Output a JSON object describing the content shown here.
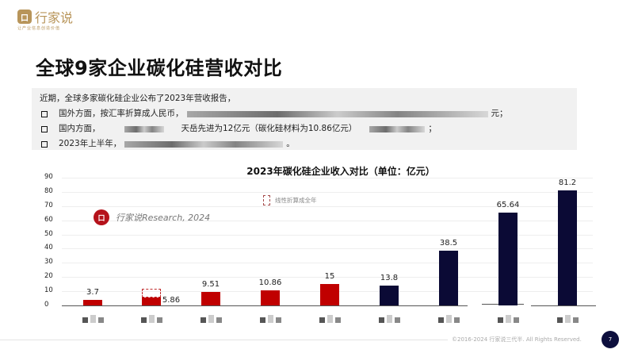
{
  "brand": {
    "logo_mark": "口",
    "name": "行家说",
    "tagline": "让产业信息创造价值",
    "color": "#b8955a"
  },
  "page": {
    "title": "全球9家企业碳化硅营收对比",
    "number": "7"
  },
  "summary": {
    "intro": "近期，全球多家碳化硅企业公布了2023年营收报告，",
    "bullets": [
      {
        "prefix": "国外方面，按汇率折算成人民币，",
        "suffix": "元；"
      },
      {
        "prefix": "国内方面，",
        "middle": "天岳先进为12亿元（碳化硅材料为10.86亿元）",
        "suffix": "；"
      },
      {
        "prefix": "2023年上半年，",
        "suffix": "。"
      }
    ]
  },
  "chart": {
    "legend_label": "线性折算成全年",
    "watermark_text": "行家说Research, 2024",
    "watermark_icon": "口"
  },
  "chart_data": {
    "type": "bar",
    "title": "2023年碳化硅企业收入对比（单位：亿元）",
    "categories": [
      "(redacted 1)",
      "(redacted 2)",
      "(redacted 3)",
      "(redacted 4)",
      "(redacted 5)",
      "(redacted 6)",
      "(redacted 7)",
      "(redacted 8)",
      "(redacted 9)"
    ],
    "values": [
      3.7,
      5.86,
      9.51,
      10.86,
      15,
      13.8,
      38.5,
      65.64,
      81.2
    ],
    "labels": [
      "3.7",
      "5.86",
      "9.51",
      "10.86",
      "15",
      "13.8",
      "38.5",
      "65.64",
      "81.2"
    ],
    "colors": [
      "#c00000",
      "#c00000",
      "#c00000",
      "#c00000",
      "#c00000",
      "#0b0a35",
      "#0b0a35",
      "#0b0a35",
      "#0b0a35"
    ],
    "annotations": [
      {
        "category_index": 1,
        "type": "dashed-box",
        "annualized_estimate": 11.72,
        "label": "线性折算成全年"
      }
    ],
    "ylim": [
      0,
      90
    ],
    "yticks": [
      0,
      10,
      20,
      30,
      40,
      50,
      60,
      70,
      80,
      90
    ],
    "xlabel": "",
    "ylabel": "",
    "grid": true
  },
  "footer": {
    "copyright": "©2016-2024 行家说三代半. All Rights Reserved."
  }
}
